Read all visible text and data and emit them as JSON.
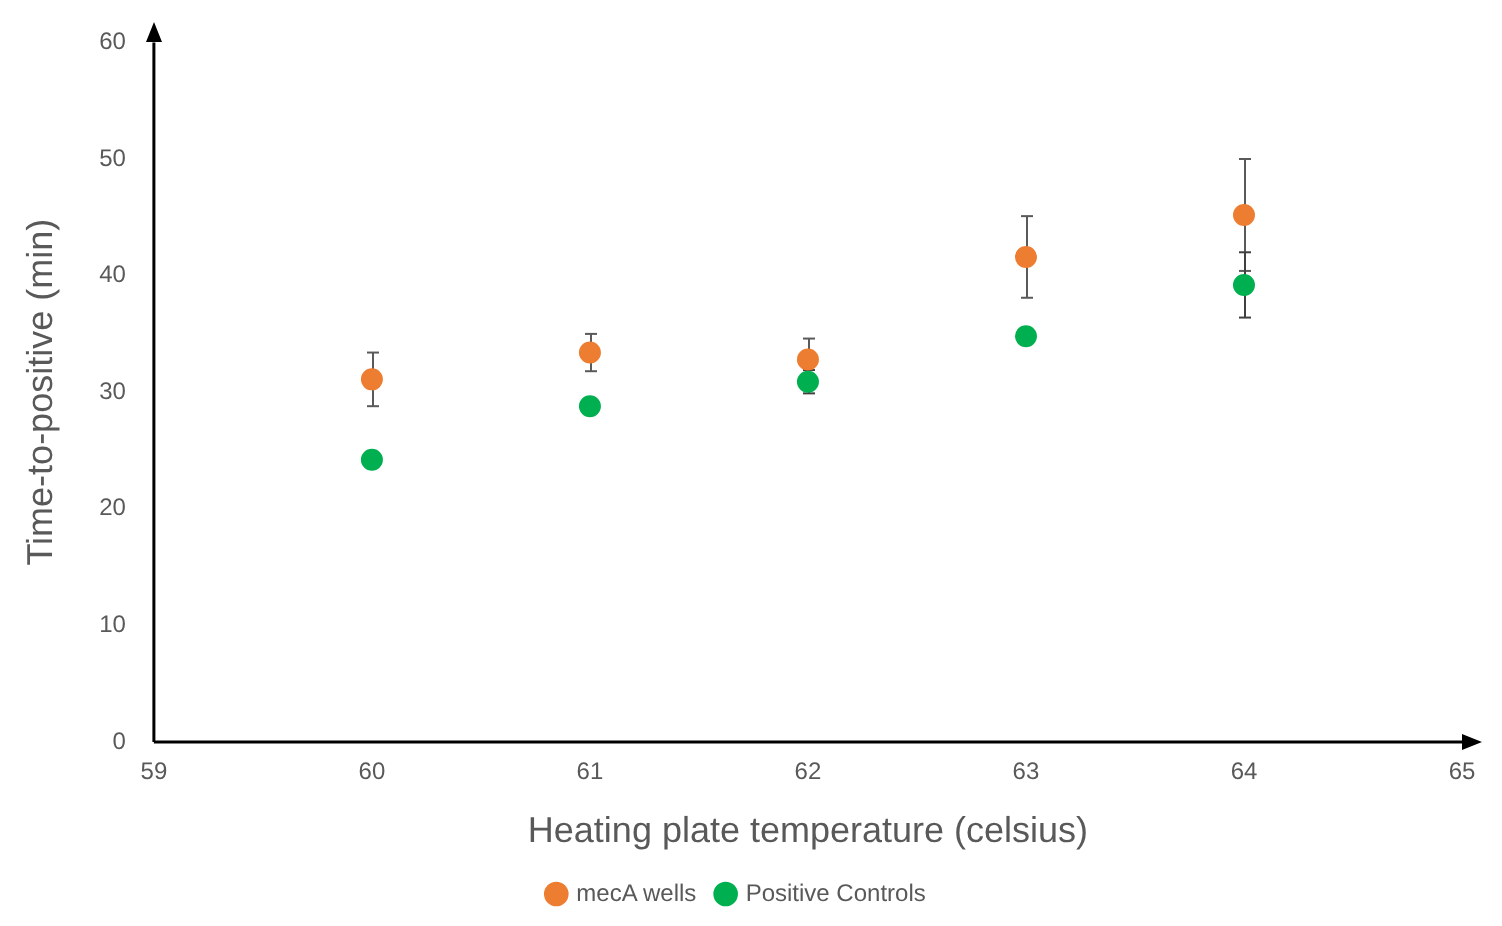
{
  "chart_data": {
    "type": "scatter",
    "xlabel": "Heating plate temperature (celsius)",
    "ylabel": "Time-to-positive (min)",
    "xlim": [
      59,
      65
    ],
    "xticks": [
      59,
      60,
      61,
      62,
      63,
      64,
      65
    ],
    "ylim": [
      0,
      60
    ],
    "yticks": [
      0,
      10,
      20,
      30,
      40,
      50,
      60
    ],
    "grid": false,
    "legend": "bottom",
    "marker": "circle",
    "series": [
      {
        "name": "mecA wells",
        "color": "#ed7d31",
        "x": [
          60,
          61,
          62,
          63,
          64
        ],
        "values": [
          31.1,
          33.4,
          32.8,
          41.6,
          45.2
        ],
        "errors": [
          2.3,
          1.6,
          1.8,
          3.5,
          4.8
        ]
      },
      {
        "name": "Positive Controls",
        "color": "#00b050",
        "x": [
          60,
          61,
          62,
          63,
          64
        ],
        "values": [
          24.2,
          28.8,
          30.9,
          34.8,
          39.2
        ],
        "errors": [
          null,
          null,
          1,
          null,
          2.8
        ]
      }
    ]
  }
}
